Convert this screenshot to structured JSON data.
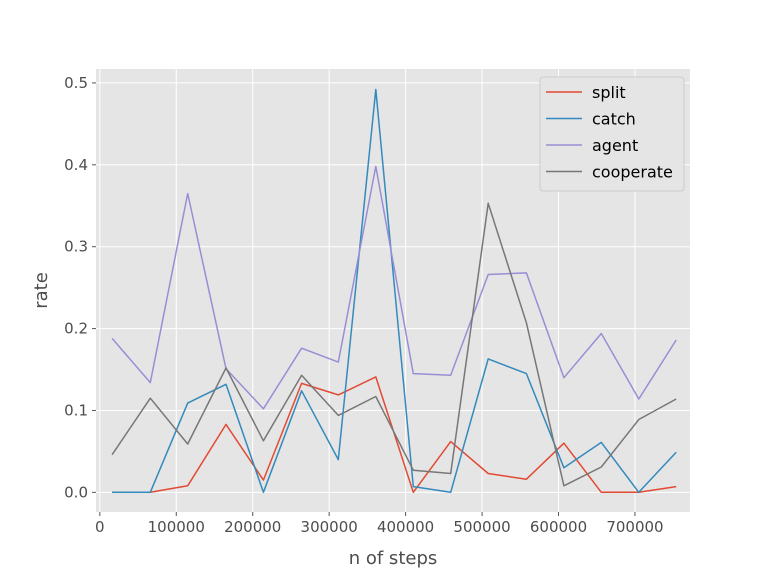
{
  "chart_data": {
    "type": "line",
    "title": "",
    "xlabel": "n of steps",
    "ylabel": "rate",
    "xlim": [
      -5000,
      772000
    ],
    "ylim": [
      -0.024,
      0.517
    ],
    "x_ticks": [
      0,
      100000,
      200000,
      300000,
      400000,
      500000,
      600000,
      700000
    ],
    "x_tick_labels": [
      "0",
      "100000",
      "200000",
      "300000",
      "400000",
      "500000",
      "600000",
      "700000"
    ],
    "y_ticks": [
      0.0,
      0.1,
      0.2,
      0.3,
      0.4,
      0.5
    ],
    "y_tick_labels": [
      "0.0",
      "0.1",
      "0.2",
      "0.3",
      "0.4",
      "0.5"
    ],
    "grid": true,
    "legend_position": "top-right",
    "x": [
      16000,
      66000,
      115000,
      165000,
      214000,
      264000,
      312000,
      361000,
      410000,
      459000,
      508000,
      558000,
      607000,
      656000,
      705000,
      754000
    ],
    "series": [
      {
        "name": "split",
        "color": "#E24A33",
        "values": [
          0.0,
          0.0,
          0.008,
          0.083,
          0.015,
          0.133,
          0.119,
          0.141,
          0.0,
          0.062,
          0.023,
          0.016,
          0.06,
          0.0,
          0.0,
          0.007
        ]
      },
      {
        "name": "catch",
        "color": "#348ABD",
        "values": [
          0.0,
          0.0,
          0.109,
          0.132,
          0.0,
          0.124,
          0.04,
          0.492,
          0.007,
          0.0,
          0.163,
          0.145,
          0.03,
          0.061,
          0.0,
          0.049
        ]
      },
      {
        "name": "agent",
        "color": "#988ED5",
        "values": [
          0.188,
          0.134,
          0.365,
          0.151,
          0.102,
          0.176,
          0.159,
          0.398,
          0.145,
          0.143,
          0.266,
          0.268,
          0.14,
          0.194,
          0.114,
          0.186
        ]
      },
      {
        "name": "cooperate",
        "color": "#777777",
        "values": [
          0.046,
          0.115,
          0.059,
          0.152,
          0.063,
          0.143,
          0.094,
          0.117,
          0.027,
          0.023,
          0.353,
          0.207,
          0.008,
          0.031,
          0.089,
          0.114
        ]
      }
    ]
  }
}
